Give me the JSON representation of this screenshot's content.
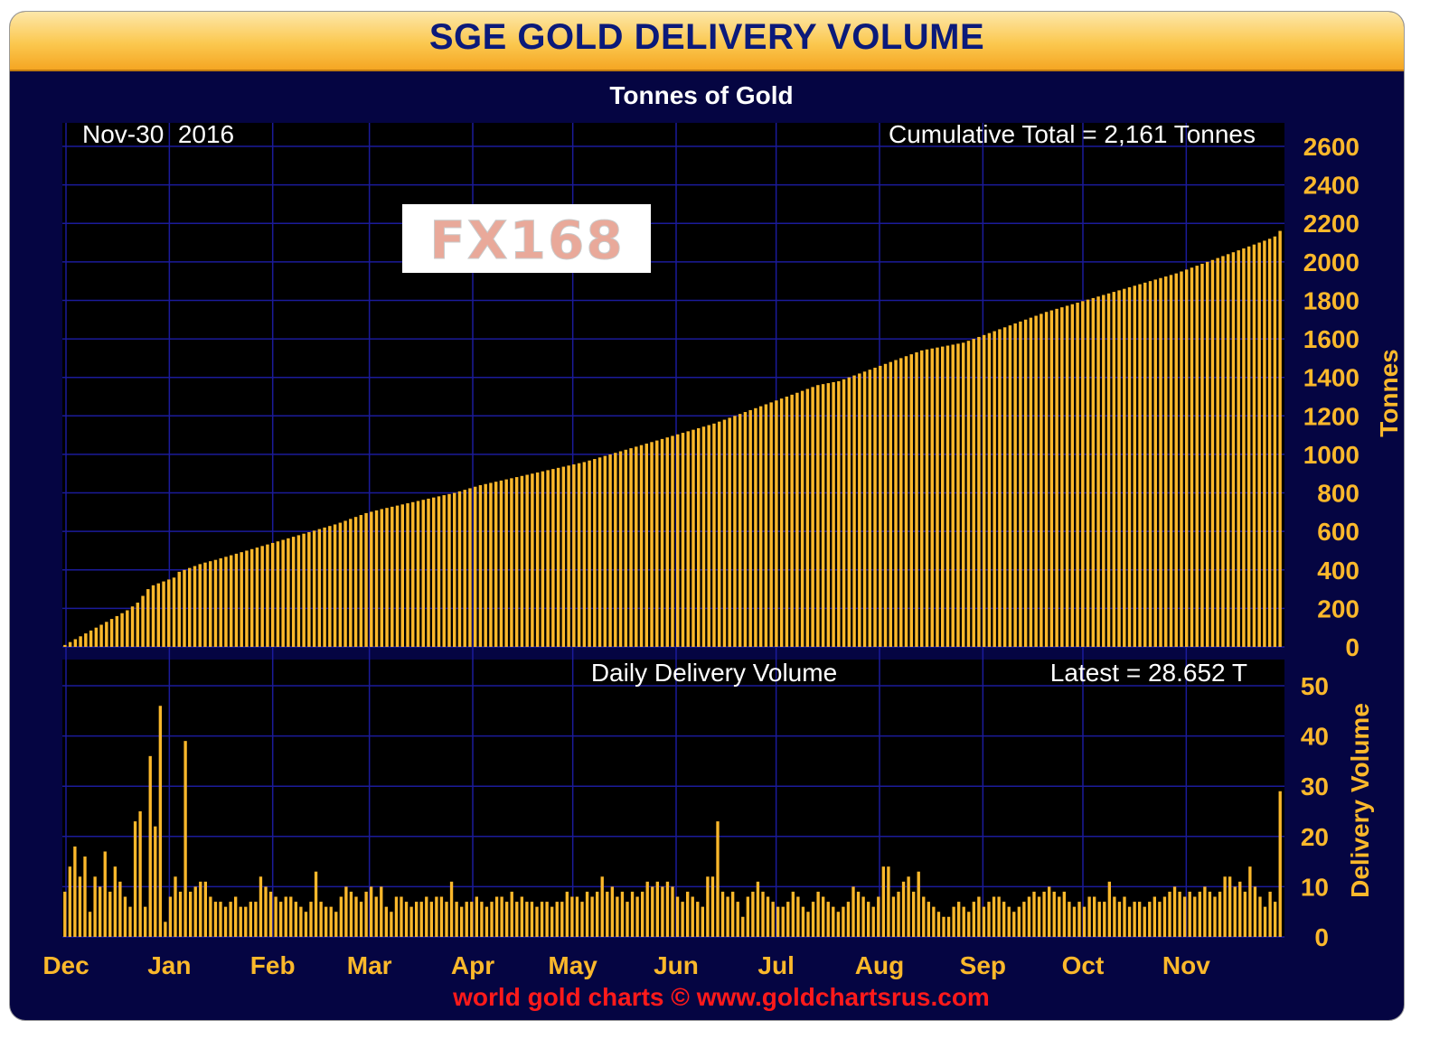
{
  "title": "SGE GOLD DELIVERY VOLUME",
  "subtitle": "Tonnes of Gold",
  "footer": "world gold charts © www.goldchartsrus.com",
  "logo_text": "FX168",
  "colors": {
    "bar": "#fbb82b",
    "frame": "#050542",
    "plot_bg": "#000000",
    "grid": "#1b1b9a",
    "title_text": "#0b1a7a",
    "footer_text": "#ff1a1a"
  },
  "chart_data": [
    {
      "type": "bar",
      "name": "cumulative",
      "date_label": "Nov-30  2016",
      "annotation": "Cumulative Total = 2,161 Tonnes",
      "ylabel": "Tonnes",
      "ylim": [
        0,
        2600
      ],
      "yticks": [
        0,
        200,
        400,
        600,
        800,
        1000,
        1200,
        1400,
        1600,
        1800,
        2000,
        2200,
        2400,
        2600
      ],
      "months": [
        "Dec",
        "Jan",
        "Feb",
        "Mar",
        "Apr",
        "May",
        "Jun",
        "Jul",
        "Aug",
        "Sep",
        "Oct",
        "Nov"
      ],
      "grid": true,
      "values": [
        10,
        25,
        40,
        55,
        70,
        85,
        100,
        115,
        130,
        145,
        160,
        175,
        190,
        210,
        230,
        265,
        300,
        320,
        330,
        340,
        350,
        360,
        390,
        400,
        410,
        420,
        430,
        438,
        445,
        452,
        460,
        468,
        476,
        484,
        492,
        500,
        508,
        516,
        524,
        532,
        540,
        548,
        556,
        564,
        572,
        580,
        588,
        596,
        604,
        612,
        620,
        628,
        636,
        645,
        655,
        665,
        675,
        685,
        695,
        702,
        709,
        716,
        722,
        728,
        734,
        740,
        746,
        752,
        758,
        764,
        770,
        776,
        782,
        788,
        794,
        800,
        808,
        816,
        824,
        832,
        840,
        846,
        852,
        858,
        864,
        870,
        876,
        882,
        888,
        894,
        900,
        906,
        912,
        918,
        924,
        930,
        936,
        942,
        948,
        954,
        960,
        968,
        976,
        984,
        992,
        1000,
        1008,
        1016,
        1024,
        1032,
        1040,
        1048,
        1056,
        1064,
        1072,
        1080,
        1088,
        1096,
        1104,
        1112,
        1120,
        1128,
        1136,
        1144,
        1152,
        1160,
        1170,
        1180,
        1190,
        1200,
        1210,
        1220,
        1230,
        1240,
        1250,
        1260,
        1270,
        1280,
        1290,
        1300,
        1310,
        1320,
        1330,
        1340,
        1350,
        1360,
        1365,
        1370,
        1375,
        1380,
        1390,
        1400,
        1410,
        1420,
        1430,
        1440,
        1450,
        1460,
        1470,
        1480,
        1490,
        1500,
        1510,
        1520,
        1530,
        1540,
        1545,
        1550,
        1555,
        1560,
        1565,
        1570,
        1575,
        1580,
        1590,
        1600,
        1610,
        1620,
        1630,
        1640,
        1650,
        1660,
        1670,
        1680,
        1690,
        1700,
        1710,
        1720,
        1730,
        1740,
        1748,
        1756,
        1764,
        1772,
        1780,
        1788,
        1796,
        1804,
        1812,
        1820,
        1828,
        1836,
        1844,
        1852,
        1860,
        1868,
        1876,
        1884,
        1892,
        1900,
        1908,
        1916,
        1924,
        1932,
        1940,
        1950,
        1960,
        1970,
        1980,
        1990,
        2000,
        2010,
        2020,
        2030,
        2040,
        2050,
        2060,
        2070,
        2080,
        2090,
        2100,
        2110,
        2120,
        2132,
        2161
      ]
    },
    {
      "type": "bar",
      "name": "daily",
      "label": "Daily Delivery Volume",
      "annotation": "Latest = 28.652 T",
      "ylabel": "Delivery Volume",
      "ylim": [
        0,
        50
      ],
      "yticks": [
        0,
        10,
        20,
        30,
        40,
        50
      ],
      "grid": true,
      "values": [
        9,
        14,
        18,
        12,
        16,
        5,
        12,
        10,
        17,
        9,
        14,
        11,
        8,
        6,
        23,
        25,
        6,
        36,
        22,
        46,
        3,
        8,
        12,
        9,
        39,
        9,
        10,
        11,
        11,
        8,
        7,
        7,
        6,
        7,
        8,
        6,
        6,
        7,
        7,
        12,
        10,
        9,
        8,
        7,
        8,
        8,
        7,
        6,
        5,
        7,
        13,
        7,
        6,
        6,
        5,
        8,
        10,
        9,
        8,
        7,
        9,
        10,
        8,
        10,
        6,
        5,
        8,
        8,
        7,
        6,
        7,
        7,
        8,
        7,
        8,
        8,
        7,
        11,
        7,
        6,
        7,
        7,
        8,
        7,
        6,
        7,
        8,
        8,
        7,
        9,
        7,
        8,
        7,
        7,
        6,
        7,
        7,
        6,
        7,
        7,
        9,
        8,
        8,
        7,
        9,
        8,
        9,
        12,
        9,
        10,
        8,
        9,
        7,
        9,
        8,
        9,
        11,
        10,
        11,
        10,
        11,
        10,
        8,
        7,
        9,
        8,
        7,
        6,
        12,
        12,
        23,
        9,
        8,
        9,
        7,
        4,
        8,
        9,
        11,
        9,
        8,
        7,
        6,
        6,
        7,
        9,
        8,
        6,
        5,
        7,
        9,
        8,
        7,
        6,
        5,
        6,
        7,
        10,
        9,
        8,
        7,
        6,
        8,
        14,
        14,
        8,
        9,
        11,
        12,
        9,
        13,
        8,
        7,
        6,
        5,
        4,
        4,
        6,
        7,
        6,
        5,
        7,
        8,
        6,
        7,
        8,
        8,
        7,
        6,
        5,
        6,
        7,
        8,
        9,
        8,
        9,
        10,
        9,
        8,
        9,
        7,
        6,
        7,
        6,
        8,
        8,
        7,
        7,
        11,
        8,
        7,
        8,
        6,
        7,
        7,
        6,
        7,
        8,
        7,
        8,
        9,
        10,
        9,
        8,
        9,
        8,
        9,
        10,
        9,
        8,
        9,
        12,
        12,
        10,
        11,
        9,
        14,
        10,
        8,
        6,
        9,
        7,
        29
      ]
    }
  ]
}
